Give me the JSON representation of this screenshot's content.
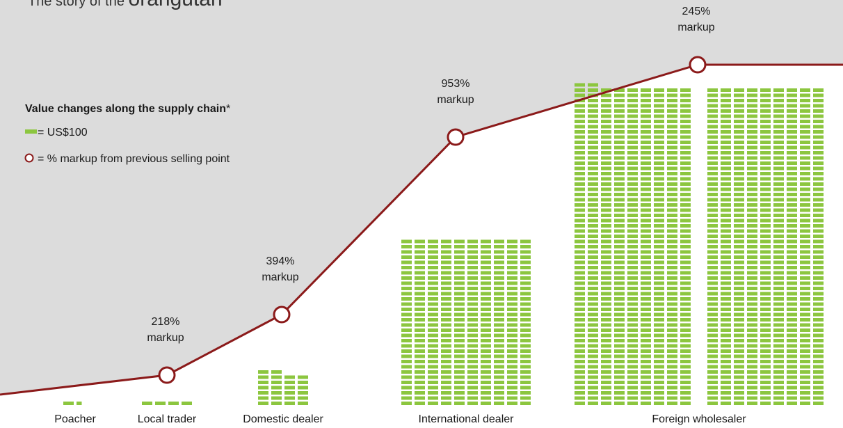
{
  "title_prefix": "The story of the",
  "title_main": "orangutan",
  "legend": {
    "heading": "Value changes along the supply chain",
    "heading_mark": "*",
    "block_label": "= US$100",
    "block_value": 100,
    "circle_label": "= % markup from previous selling point"
  },
  "chart_data": {
    "type": "pictogram",
    "categories": [
      "Poacher",
      "Local trader",
      "Domestic dealer",
      "International dealer",
      "Foreign wholesaler"
    ],
    "values": [
      150,
      400,
      2600,
      32000,
      110000
    ],
    "block_color": "#8cc63f",
    "markup": {
      "label": "markup",
      "color": "#8b1a1a",
      "values": [
        null,
        218,
        394,
        953,
        245
      ],
      "value_labels": [
        null,
        "218%",
        "394%",
        "953%",
        "245%"
      ]
    },
    "background": "#dcdcdc"
  }
}
